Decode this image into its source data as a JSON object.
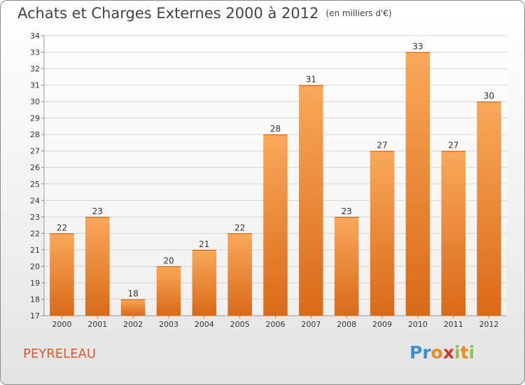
{
  "header": {
    "title": "Achats et Charges Externes 2000 à 2012",
    "unit": "(en milliers d'€)"
  },
  "footer": {
    "place": "PEYRELEAU",
    "logo_letters": [
      "P",
      "r",
      "o",
      "x",
      "i",
      "t",
      "i"
    ]
  },
  "colors": {
    "bar_top": "#f9a85a",
    "bar_bottom": "#d96a18",
    "title": "#444444",
    "place": "#e0582a",
    "logo": [
      "#3c8fd0",
      "#3c8fd0",
      "#f08a1c",
      "#d8322a",
      "#8cc63e",
      "#f08a1c",
      "#8cc63e"
    ]
  },
  "chart_data": {
    "type": "bar",
    "title": "Achats et Charges Externes 2000 à 2012",
    "subtitle": "(en milliers d'€)",
    "categories": [
      "2000",
      "2001",
      "2002",
      "2003",
      "2004",
      "2005",
      "2006",
      "2007",
      "2008",
      "2009",
      "2010",
      "2011",
      "2012"
    ],
    "values": [
      22,
      23,
      18,
      20,
      21,
      22,
      28,
      31,
      23,
      27,
      33,
      27,
      30
    ],
    "ylim": [
      17,
      34
    ],
    "yticks": [
      17,
      18,
      19,
      20,
      21,
      22,
      23,
      24,
      25,
      26,
      27,
      28,
      29,
      30,
      31,
      32,
      33,
      34
    ],
    "grid": true,
    "data_labels": true,
    "legend": "none"
  }
}
